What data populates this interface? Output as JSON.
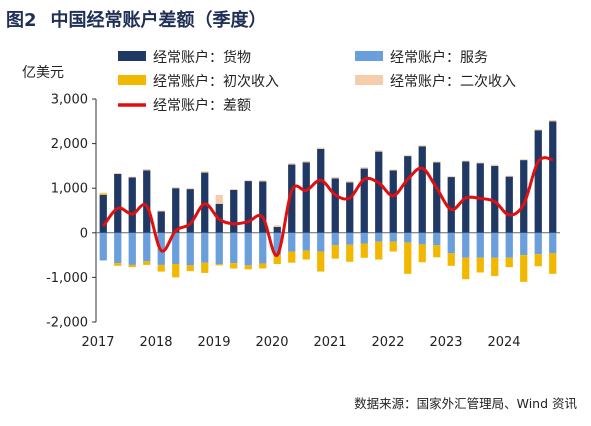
{
  "figure": {
    "number": "图2",
    "title": "中国经常账户差额（季度）",
    "source": "数据来源：国家外汇管理局、Wind 资讯"
  },
  "chart_data": {
    "type": "bar",
    "ylabel": "亿美元",
    "ylim": [
      -2000,
      3000
    ],
    "yticks": [
      3000,
      2000,
      1000,
      0,
      -1000,
      -2000
    ],
    "ytick_labels": [
      "3,000",
      "2,000",
      "1,000",
      "0",
      "-1,000",
      "-2,000"
    ],
    "xticks": [
      "2017",
      "2018",
      "2019",
      "2020",
      "2021",
      "2022",
      "2023",
      "2024"
    ],
    "x": [
      "2017Q1",
      "2017Q2",
      "2017Q3",
      "2017Q4",
      "2018Q1",
      "2018Q2",
      "2018Q3",
      "2018Q4",
      "2019Q1",
      "2019Q2",
      "2019Q3",
      "2019Q4",
      "2020Q1",
      "2020Q2",
      "2020Q3",
      "2020Q4",
      "2021Q1",
      "2021Q2",
      "2021Q3",
      "2021Q4",
      "2022Q1",
      "2022Q2",
      "2022Q3",
      "2022Q4",
      "2023Q1",
      "2023Q2",
      "2023Q3",
      "2023Q4",
      "2024Q1",
      "2024Q2",
      "2024Q3",
      "2024Q4"
    ],
    "legend_placement": "top",
    "series": [
      {
        "name": "经常账户：货物",
        "kind": "stacked-bar",
        "color": "#1f3864",
        "values": [
          850,
          1320,
          1240,
          1400,
          480,
          1000,
          980,
          1350,
          650,
          960,
          1160,
          1150,
          130,
          1530,
          1580,
          1880,
          1220,
          1130,
          1440,
          1820,
          1400,
          1720,
          1940,
          1580,
          1250,
          1600,
          1560,
          1500,
          1260,
          1630,
          2300,
          2500
        ]
      },
      {
        "name": "经常账户：服务",
        "kind": "stacked-bar",
        "color": "#6a9fdb",
        "values": [
          -620,
          -680,
          -720,
          -640,
          -720,
          -700,
          -730,
          -670,
          -700,
          -680,
          -730,
          -690,
          -500,
          -420,
          -400,
          -420,
          -280,
          -270,
          -240,
          -200,
          -200,
          -220,
          -260,
          -280,
          -460,
          -560,
          -560,
          -560,
          -560,
          -500,
          -480,
          -460
        ]
      },
      {
        "name": "经常账户：初次收入",
        "kind": "stacked-bar",
        "color": "#f2b800",
        "values": [
          30,
          -60,
          -50,
          -80,
          -150,
          -300,
          -130,
          -230,
          -30,
          -120,
          -90,
          -110,
          -200,
          -250,
          -200,
          -450,
          -300,
          -380,
          -320,
          -400,
          -220,
          -700,
          -400,
          -270,
          -280,
          -480,
          -330,
          -410,
          -210,
          -600,
          -270,
          -460
        ]
      },
      {
        "name": "经常账户：二次收入",
        "kind": "stacked-bar",
        "color": "#f6cdaa",
        "values": [
          20,
          20,
          20,
          30,
          20,
          20,
          20,
          30,
          200,
          20,
          20,
          30,
          40,
          30,
          30,
          30,
          30,
          30,
          30,
          30,
          20,
          20,
          20,
          20,
          20,
          20,
          20,
          30,
          20,
          20,
          20,
          30
        ]
      },
      {
        "name": "经常账户：差额",
        "kind": "line",
        "color": "#e01010",
        "values": [
          150,
          550,
          420,
          600,
          -400,
          50,
          200,
          650,
          300,
          200,
          250,
          350,
          -500,
          950,
          950,
          1180,
          850,
          780,
          1200,
          1120,
          830,
          1200,
          1450,
          1000,
          520,
          780,
          770,
          700,
          400,
          640,
          1600,
          1640
        ]
      }
    ]
  }
}
